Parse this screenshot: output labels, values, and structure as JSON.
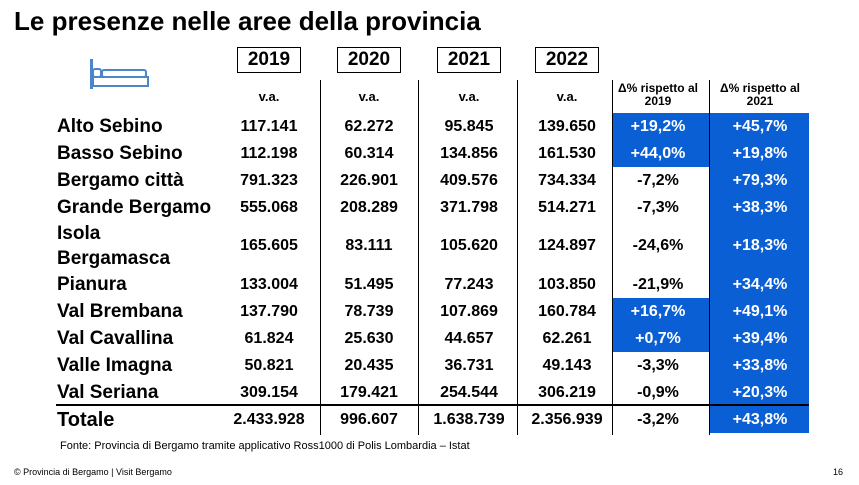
{
  "title": "Le presenze nelle aree della provincia",
  "icon": "bed-icon",
  "columns": {
    "years": [
      "2019",
      "2020",
      "2021",
      "2022"
    ],
    "value_label": "v.a.",
    "pct_headers": [
      "Δ% rispetto al 2019",
      "Δ% rispetto al 2021"
    ]
  },
  "colors": {
    "highlight": "#0b5fd5"
  },
  "rows": [
    {
      "name": "Alto Sebino",
      "values": [
        "117.141",
        "62.272",
        "95.845",
        "139.650"
      ],
      "pct": [
        "+19,2%",
        "+45,7%"
      ]
    },
    {
      "name": "Basso Sebino",
      "values": [
        "112.198",
        "60.314",
        "134.856",
        "161.530"
      ],
      "pct": [
        "+44,0%",
        "+19,8%"
      ]
    },
    {
      "name": "Bergamo città",
      "values": [
        "791.323",
        "226.901",
        "409.576",
        "734.334"
      ],
      "pct": [
        "-7,2%",
        "+79,3%"
      ]
    },
    {
      "name": "Grande Bergamo",
      "values": [
        "555.068",
        "208.289",
        "371.798",
        "514.271"
      ],
      "pct": [
        "-7,3%",
        "+38,3%"
      ]
    },
    {
      "name": "Isola Bergamasca",
      "values": [
        "165.605",
        "83.111",
        "105.620",
        "124.897"
      ],
      "pct": [
        "-24,6%",
        "+18,3%"
      ]
    },
    {
      "name": "Pianura",
      "values": [
        "133.004",
        "51.495",
        "77.243",
        "103.850"
      ],
      "pct": [
        "-21,9%",
        "+34,4%"
      ]
    },
    {
      "name": "Val Brembana",
      "values": [
        "137.790",
        "78.739",
        "107.869",
        "160.784"
      ],
      "pct": [
        "+16,7%",
        "+49,1%"
      ]
    },
    {
      "name": "Val Cavallina",
      "values": [
        "61.824",
        "25.630",
        "44.657",
        "62.261"
      ],
      "pct": [
        "+0,7%",
        "+39,4%"
      ]
    },
    {
      "name": "Valle Imagna",
      "values": [
        "50.821",
        "20.435",
        "36.731",
        "49.143"
      ],
      "pct": [
        "-3,3%",
        "+33,8%"
      ]
    },
    {
      "name": "Val Seriana",
      "values": [
        "309.154",
        "179.421",
        "254.544",
        "306.219"
      ],
      "pct": [
        "-0,9%",
        "+20,3%"
      ]
    }
  ],
  "total": {
    "name": "Totale",
    "values": [
      "2.433.928",
      "996.607",
      "1.638.739",
      "2.356.939"
    ],
    "pct": [
      "-3,2%",
      "+43,8%"
    ]
  },
  "footnote": "Fonte: Provincia di Bergamo tramite applicativo Ross1000 di Polis Lombardia – Istat",
  "footer": {
    "copyright": "© Provincia di Bergamo | Visit Bergamo",
    "page": "16"
  }
}
